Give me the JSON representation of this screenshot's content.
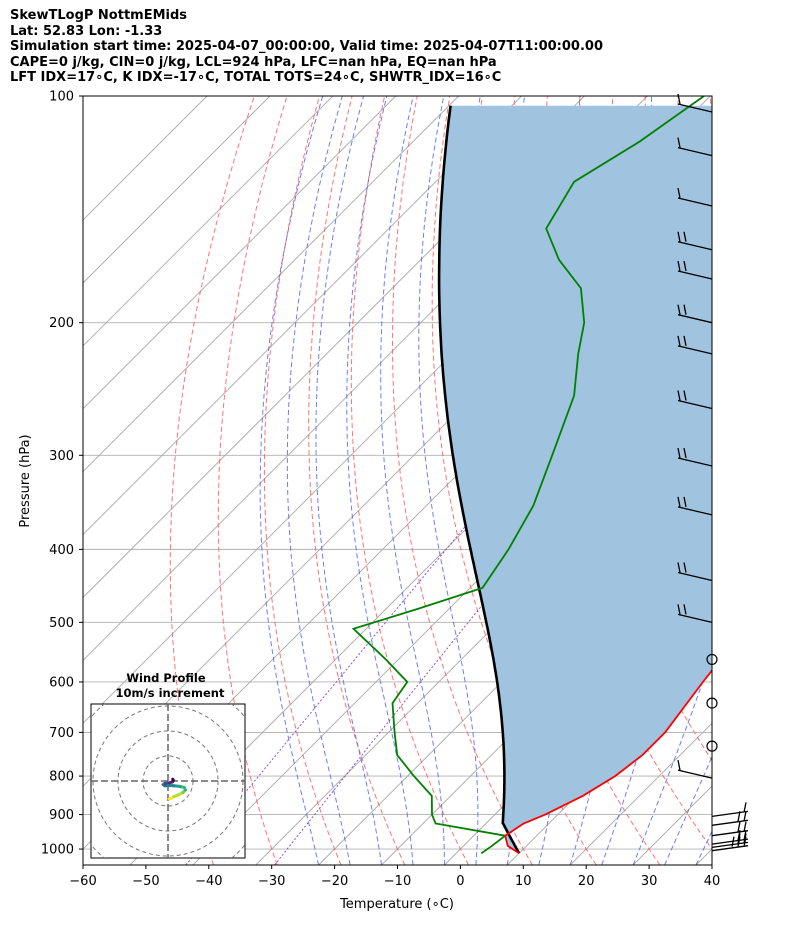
{
  "header": {
    "line1": "SkewTLogP NottmEMids",
    "line2": "Lat: 52.83   Lon: -1.33",
    "line3": "Simulation start time: 2025-04-07_00:00:00, Valid time: 2025-04-07T11:00:00.00",
    "line4": "CAPE=0 j/kg, CIN=0 j/kg, LCL=924 hPa, LFC=nan hPa, EQ=nan hPa",
    "line5": "LFT IDX=17∘C, K IDX=-17∘C, TOTAL TOTS=24∘C, SHWTR_IDX=16∘C"
  },
  "chart_data": {
    "type": "line",
    "xlabel": "Temperature (∘C)",
    "ylabel": "Pressure (hPa)",
    "xlim": [
      -60,
      40
    ],
    "ylim": [
      1050,
      100
    ],
    "yscale": "log",
    "skew": true,
    "grid": true,
    "x_ticks": [
      -60,
      -50,
      -40,
      -30,
      -20,
      -10,
      0,
      10,
      20,
      30,
      40
    ],
    "x_tick_labels": [
      "−60",
      "−50",
      "−40",
      "−30",
      "−20",
      "−10",
      "0",
      "10",
      "20",
      "30",
      "40"
    ],
    "y_ticks": [
      100,
      200,
      300,
      400,
      500,
      600,
      700,
      800,
      900,
      1000
    ],
    "y_tick_labels": [
      "100",
      "200",
      "300",
      "400",
      "500",
      "600",
      "700",
      "800",
      "900",
      "1000"
    ],
    "colors": {
      "temperature": "#ff0000",
      "dewpoint": "#008000",
      "parcel": "#000000",
      "shade": "#a0c4df",
      "dry_adiabat": "#ff5a5a",
      "moist_adiabat": "#4a5ef0",
      "mixing_ratio": "#8a3fc5",
      "isotherm": "#a9a9a9"
    },
    "series": [
      {
        "key": "temperature",
        "points": [
          [
            10,
            1013
          ],
          [
            7,
            990
          ],
          [
            5,
            960
          ],
          [
            6,
            925
          ],
          [
            8,
            900
          ],
          [
            11,
            850
          ],
          [
            13,
            800
          ],
          [
            14,
            750
          ],
          [
            14,
            700
          ],
          [
            12,
            600
          ],
          [
            10,
            500
          ],
          [
            6,
            400
          ],
          [
            1,
            300
          ],
          [
            -5,
            250
          ],
          [
            -8,
            220
          ],
          [
            -10,
            200
          ],
          [
            -11,
            180
          ],
          [
            -13,
            160
          ],
          [
            -15,
            140
          ],
          [
            -18,
            125
          ],
          [
            -21,
            112
          ],
          [
            -24,
            100
          ]
        ]
      },
      {
        "key": "dewpoint",
        "points": [
          [
            4,
            1013
          ],
          [
            4.5,
            990
          ],
          [
            5,
            960
          ],
          [
            -8,
            925
          ],
          [
            -10,
            900
          ],
          [
            -13,
            850
          ],
          [
            -19,
            800
          ],
          [
            -25,
            750
          ],
          [
            -29,
            700
          ],
          [
            -34,
            640
          ],
          [
            -35,
            600
          ],
          [
            -42,
            560
          ],
          [
            -52,
            510
          ],
          [
            -45,
            480
          ],
          [
            -38,
            450
          ],
          [
            -40,
            400
          ],
          [
            -43,
            350
          ],
          [
            -48,
            300
          ],
          [
            -54,
            250
          ],
          [
            -60,
            220
          ],
          [
            -64,
            200
          ],
          [
            -70,
            180
          ],
          [
            -78,
            165
          ],
          [
            -85,
            150
          ],
          [
            -88,
            130
          ],
          [
            -84,
            115
          ],
          [
            -81,
            100
          ]
        ]
      }
    ],
    "hodograph": {
      "title": "Wind Profile",
      "subtitle": "10m/s increment",
      "ring_spacing": 10,
      "u": [
        0.4,
        1.0,
        2.0,
        3.5,
        5.0,
        5.8,
        5.5,
        4.0,
        2.0,
        0.5,
        -1.0,
        -1.6,
        -1.0,
        0.5,
        1.5,
        1.8,
        1.6
      ],
      "v": [
        -6.0,
        -5.8,
        -5.2,
        -4.6,
        -3.8,
        -3.0,
        -2.2,
        -1.8,
        -1.6,
        -1.5,
        -1.6,
        -1.2,
        -0.8,
        -0.6,
        -0.3,
        0.2,
        0.6
      ],
      "colormap": [
        "#fde725",
        "#b5de2b",
        "#6ece58",
        "#35b779",
        "#1f9e89",
        "#26828e",
        "#31688e",
        "#3e4989",
        "#482878",
        "#440154"
      ]
    }
  }
}
